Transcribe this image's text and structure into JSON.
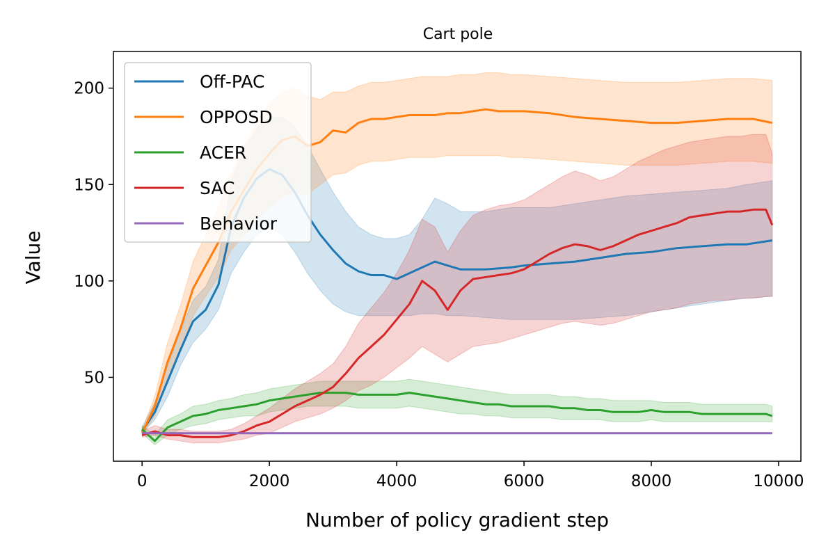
{
  "chart_data": {
    "type": "line",
    "title": "Cart pole",
    "xlabel": "Number of policy gradient step",
    "ylabel": "Value",
    "xlim": [
      -450,
      10350
    ],
    "ylim": [
      6.5,
      219
    ],
    "x_ticks": [
      0,
      2000,
      4000,
      6000,
      8000,
      10000
    ],
    "y_ticks": [
      50,
      100,
      150,
      200
    ],
    "legend_position": "top-left",
    "grid": false,
    "series": [
      {
        "name": "Off-PAC",
        "color": "#1f77b4",
        "x": [
          0,
          200,
          400,
          600,
          800,
          1000,
          1200,
          1400,
          1600,
          1800,
          2000,
          2200,
          2400,
          2600,
          2800,
          3000,
          3200,
          3400,
          3600,
          3800,
          4000,
          4200,
          4400,
          4600,
          4800,
          5000,
          5400,
          5800,
          6000,
          6400,
          6800,
          7200,
          7600,
          8000,
          8400,
          8800,
          9200,
          9500,
          9900
        ],
        "values": [
          22,
          32,
          48,
          64,
          79,
          85,
          98,
          128,
          143,
          153,
          158,
          155,
          146,
          134,
          124,
          116,
          109,
          105,
          103,
          103,
          101,
          104,
          107,
          110,
          108,
          106,
          106,
          107,
          108,
          109,
          110,
          112,
          114,
          115,
          117,
          118,
          119,
          119,
          121
        ],
        "lower": [
          21,
          28,
          40,
          56,
          68,
          75,
          85,
          104,
          115,
          124,
          128,
          124,
          115,
          104,
          95,
          88,
          84,
          82,
          82,
          82,
          82,
          82,
          83,
          83,
          82,
          82,
          81,
          80,
          80,
          80,
          80,
          81,
          82,
          84,
          86,
          88,
          90,
          91,
          92
        ],
        "upper": [
          24,
          37,
          56,
          74,
          90,
          97,
          111,
          152,
          168,
          179,
          185,
          185,
          180,
          170,
          158,
          146,
          136,
          128,
          124,
          122,
          122,
          124,
          132,
          143,
          140,
          136,
          136,
          138,
          138,
          138,
          140,
          142,
          144,
          145,
          146,
          147,
          148,
          150,
          152
        ]
      },
      {
        "name": "OPPOSD",
        "color": "#ff7f0e",
        "x": [
          0,
          200,
          400,
          600,
          800,
          1000,
          1200,
          1400,
          1600,
          1800,
          2000,
          2200,
          2400,
          2600,
          2800,
          3000,
          3200,
          3400,
          3600,
          3800,
          4000,
          4200,
          4400,
          4600,
          4800,
          5000,
          5200,
          5400,
          5600,
          5800,
          6000,
          6400,
          6800,
          7200,
          7600,
          8000,
          8400,
          8800,
          9200,
          9600,
          9900
        ],
        "values": [
          21,
          35,
          58,
          75,
          96,
          108,
          120,
          136,
          147,
          158,
          166,
          173,
          175,
          170,
          172,
          178,
          177,
          182,
          184,
          184,
          185,
          186,
          186,
          186,
          187,
          187,
          188,
          189,
          188,
          188,
          188,
          187,
          185,
          184,
          183,
          182,
          182,
          183,
          184,
          184,
          182
        ],
        "lower": [
          20,
          30,
          48,
          63,
          82,
          92,
          102,
          116,
          124,
          132,
          138,
          144,
          146,
          145,
          150,
          155,
          156,
          160,
          162,
          162,
          163,
          164,
          164,
          164,
          165,
          165,
          165,
          165,
          165,
          164,
          164,
          163,
          162,
          161,
          160,
          160,
          160,
          161,
          162,
          162,
          161
        ],
        "upper": [
          23,
          40,
          68,
          87,
          110,
          124,
          138,
          156,
          170,
          182,
          192,
          198,
          200,
          196,
          194,
          198,
          198,
          201,
          203,
          203,
          204,
          205,
          206,
          206,
          206,
          207,
          207,
          208,
          208,
          207,
          207,
          206,
          205,
          204,
          203,
          203,
          203,
          204,
          205,
          205,
          204
        ]
      },
      {
        "name": "ACER",
        "color": "#2ca02c",
        "x": [
          0,
          200,
          400,
          600,
          800,
          1000,
          1200,
          1400,
          1600,
          1800,
          2000,
          2200,
          2400,
          2600,
          2800,
          3000,
          3200,
          3400,
          3600,
          3800,
          4000,
          4200,
          4400,
          4600,
          4800,
          5000,
          5200,
          5400,
          5600,
          5800,
          6000,
          6200,
          6400,
          6600,
          6800,
          7000,
          7200,
          7400,
          7600,
          7800,
          8000,
          8200,
          8400,
          8600,
          8800,
          9000,
          9200,
          9400,
          9600,
          9800,
          9900
        ],
        "values": [
          23,
          17,
          24,
          27,
          30,
          31,
          33,
          34,
          35,
          36,
          38,
          39,
          40,
          41,
          42,
          42,
          42,
          41,
          41,
          41,
          41,
          42,
          41,
          40,
          39,
          38,
          37,
          36,
          36,
          35,
          35,
          35,
          35,
          34,
          34,
          33,
          33,
          32,
          32,
          32,
          33,
          32,
          32,
          32,
          31,
          31,
          31,
          31,
          31,
          31,
          30
        ],
        "lower": [
          21,
          15,
          20,
          23,
          25,
          26,
          28,
          29,
          30,
          30,
          32,
          33,
          34,
          35,
          35,
          35,
          35,
          34,
          34,
          34,
          34,
          35,
          34,
          33,
          32,
          31,
          31,
          30,
          30,
          29,
          29,
          29,
          29,
          28,
          28,
          28,
          28,
          27,
          27,
          27,
          28,
          27,
          27,
          27,
          27,
          27,
          27,
          27,
          27,
          27,
          27
        ],
        "upper": [
          25,
          20,
          28,
          31,
          35,
          36,
          38,
          39,
          41,
          42,
          44,
          45,
          46,
          47,
          48,
          48,
          48,
          48,
          48,
          48,
          48,
          49,
          48,
          47,
          46,
          45,
          44,
          43,
          42,
          41,
          41,
          41,
          41,
          40,
          40,
          39,
          39,
          38,
          38,
          38,
          38,
          37,
          37,
          37,
          36,
          36,
          36,
          36,
          36,
          36,
          35
        ]
      },
      {
        "name": "SAC",
        "color": "#d62728",
        "x": [
          0,
          200,
          400,
          600,
          800,
          1000,
          1200,
          1400,
          1600,
          1800,
          2000,
          2200,
          2400,
          2600,
          2800,
          3000,
          3200,
          3400,
          3600,
          3800,
          4000,
          4200,
          4400,
          4600,
          4800,
          5000,
          5200,
          5400,
          5600,
          5800,
          6000,
          6200,
          6400,
          6600,
          6800,
          7000,
          7200,
          7400,
          7600,
          7800,
          8000,
          8200,
          8400,
          8600,
          8800,
          9000,
          9200,
          9400,
          9600,
          9800,
          9900
        ],
        "values": [
          20,
          22,
          20,
          20,
          19,
          19,
          19,
          20,
          22,
          25,
          27,
          31,
          35,
          38,
          41,
          45,
          52,
          60,
          66,
          72,
          80,
          88,
          100,
          95,
          85,
          95,
          101,
          102,
          103,
          104,
          106,
          110,
          114,
          117,
          119,
          118,
          116,
          118,
          121,
          124,
          126,
          128,
          130,
          133,
          134,
          135,
          136,
          136,
          137,
          137,
          129
        ],
        "lower": [
          19,
          20,
          18,
          17,
          16,
          16,
          16,
          17,
          18,
          20,
          21,
          24,
          27,
          29,
          31,
          34,
          38,
          43,
          46,
          50,
          55,
          60,
          66,
          62,
          58,
          62,
          66,
          67,
          68,
          70,
          72,
          74,
          76,
          78,
          79,
          78,
          77,
          78,
          80,
          82,
          84,
          85,
          86,
          88,
          89,
          90,
          90,
          91,
          91,
          92,
          92
        ],
        "upper": [
          22,
          25,
          23,
          23,
          22,
          22,
          22,
          23,
          26,
          30,
          34,
          39,
          44,
          48,
          52,
          57,
          66,
          78,
          86,
          94,
          104,
          116,
          132,
          128,
          115,
          126,
          134,
          137,
          139,
          140,
          142,
          146,
          150,
          154,
          157,
          155,
          152,
          154,
          158,
          162,
          165,
          168,
          170,
          172,
          173,
          174,
          175,
          175,
          176,
          176,
          166
        ]
      },
      {
        "name": "Behavior",
        "color": "#9467bd",
        "x": [
          0,
          9900
        ],
        "values": [
          21,
          21
        ],
        "lower": [
          21,
          21
        ],
        "upper": [
          21,
          21
        ]
      }
    ]
  }
}
